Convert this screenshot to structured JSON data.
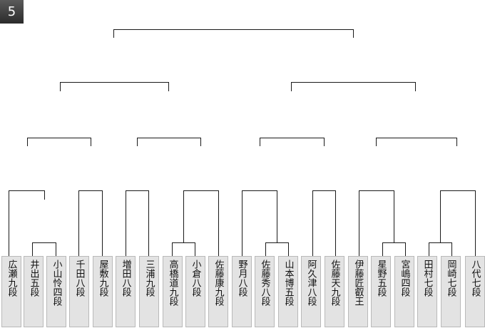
{
  "badge": {
    "label": "5"
  },
  "colors": {
    "line": "#1a1a1a",
    "box_bg": "#e3e3e3",
    "box_border": "#b9b9b9",
    "badge_bg": "#3a3a3a"
  },
  "players": [
    {
      "name": "広瀬九段"
    },
    {
      "name": "井出五段"
    },
    {
      "name": "小山怜四段"
    },
    {
      "name": "千田八段"
    },
    {
      "name": "屋敷九段"
    },
    {
      "name": "増田八段"
    },
    {
      "name": "三浦九段"
    },
    {
      "name": "高橋道九段"
    },
    {
      "name": "小倉八段"
    },
    {
      "name": "佐藤康九段"
    },
    {
      "name": "野月八段"
    },
    {
      "name": "佐藤秀八段"
    },
    {
      "name": "山本博五段"
    },
    {
      "name": "阿久津八段"
    },
    {
      "name": "佐藤天九段"
    },
    {
      "name": "伊藤匠叡王"
    },
    {
      "name": "星野五段"
    },
    {
      "name": "宮嶋四段"
    },
    {
      "name": "田村七段"
    },
    {
      "name": "岡崎七段"
    },
    {
      "name": "八代七段"
    }
  ]
}
